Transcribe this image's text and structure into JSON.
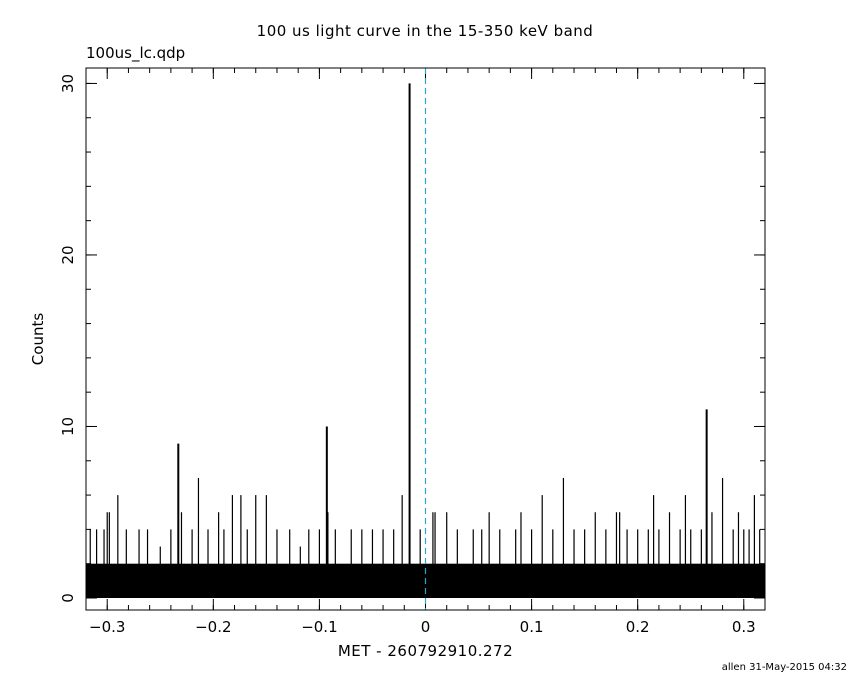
{
  "chart_data": {
    "type": "bar",
    "title": "100 us light curve in the 15-350 keV band",
    "file_label": "100us_lc.qdp",
    "footer": "allen 31-May-2015 04:32",
    "xlabel": "MET - 260792910.272",
    "ylabel": "Counts",
    "xlim": [
      -0.32,
      0.32
    ],
    "ylim": [
      -0.7,
      30.9
    ],
    "bin_width": 0.0001,
    "x_ticks": [
      -0.3,
      -0.2,
      -0.1,
      0,
      0.1,
      0.2,
      0.3
    ],
    "x_tick_labels": [
      "−0.3",
      "−0.2",
      "−0.1",
      "0",
      "0.1",
      "0.2",
      "0.3"
    ],
    "y_ticks": [
      0,
      10,
      20,
      30
    ],
    "y_tick_labels": [
      "0",
      "10",
      "20",
      "30"
    ],
    "reference_line": {
      "x": 0,
      "style": "dashed",
      "color": "#2aa7c9"
    },
    "baseline_counts": 2,
    "peaks": [
      {
        "x": -0.316,
        "y": 4
      },
      {
        "x": -0.31,
        "y": 4
      },
      {
        "x": -0.303,
        "y": 4
      },
      {
        "x": -0.3,
        "y": 5
      },
      {
        "x": -0.298,
        "y": 5
      },
      {
        "x": -0.29,
        "y": 6
      },
      {
        "x": -0.282,
        "y": 4
      },
      {
        "x": -0.27,
        "y": 4
      },
      {
        "x": -0.262,
        "y": 4
      },
      {
        "x": -0.25,
        "y": 3
      },
      {
        "x": -0.24,
        "y": 4
      },
      {
        "x": -0.233,
        "y": 9
      },
      {
        "x": -0.23,
        "y": 5
      },
      {
        "x": -0.22,
        "y": 4
      },
      {
        "x": -0.214,
        "y": 7
      },
      {
        "x": -0.205,
        "y": 4
      },
      {
        "x": -0.195,
        "y": 5
      },
      {
        "x": -0.19,
        "y": 4
      },
      {
        "x": -0.182,
        "y": 6
      },
      {
        "x": -0.174,
        "y": 6
      },
      {
        "x": -0.168,
        "y": 4
      },
      {
        "x": -0.16,
        "y": 6
      },
      {
        "x": -0.15,
        "y": 6
      },
      {
        "x": -0.14,
        "y": 4
      },
      {
        "x": -0.128,
        "y": 4
      },
      {
        "x": -0.118,
        "y": 3
      },
      {
        "x": -0.11,
        "y": 4
      },
      {
        "x": -0.1,
        "y": 4
      },
      {
        "x": -0.093,
        "y": 10
      },
      {
        "x": -0.092,
        "y": 5
      },
      {
        "x": -0.085,
        "y": 4
      },
      {
        "x": -0.07,
        "y": 4
      },
      {
        "x": -0.06,
        "y": 4
      },
      {
        "x": -0.05,
        "y": 4
      },
      {
        "x": -0.04,
        "y": 4
      },
      {
        "x": -0.03,
        "y": 4
      },
      {
        "x": -0.022,
        "y": 6
      },
      {
        "x": -0.015,
        "y": 30
      },
      {
        "x": -0.005,
        "y": 4
      },
      {
        "x": 0.007,
        "y": 5
      },
      {
        "x": 0.009,
        "y": 5
      },
      {
        "x": 0.02,
        "y": 5
      },
      {
        "x": 0.03,
        "y": 4
      },
      {
        "x": 0.045,
        "y": 4
      },
      {
        "x": 0.053,
        "y": 4
      },
      {
        "x": 0.06,
        "y": 5
      },
      {
        "x": 0.07,
        "y": 4
      },
      {
        "x": 0.085,
        "y": 4
      },
      {
        "x": 0.09,
        "y": 5
      },
      {
        "x": 0.1,
        "y": 4
      },
      {
        "x": 0.11,
        "y": 6
      },
      {
        "x": 0.12,
        "y": 4
      },
      {
        "x": 0.13,
        "y": 7
      },
      {
        "x": 0.14,
        "y": 4
      },
      {
        "x": 0.15,
        "y": 4
      },
      {
        "x": 0.16,
        "y": 5
      },
      {
        "x": 0.17,
        "y": 4
      },
      {
        "x": 0.18,
        "y": 5
      },
      {
        "x": 0.183,
        "y": 5
      },
      {
        "x": 0.19,
        "y": 4
      },
      {
        "x": 0.2,
        "y": 4
      },
      {
        "x": 0.21,
        "y": 4
      },
      {
        "x": 0.215,
        "y": 6
      },
      {
        "x": 0.22,
        "y": 4
      },
      {
        "x": 0.23,
        "y": 5
      },
      {
        "x": 0.24,
        "y": 4
      },
      {
        "x": 0.245,
        "y": 6
      },
      {
        "x": 0.25,
        "y": 4
      },
      {
        "x": 0.26,
        "y": 4
      },
      {
        "x": 0.265,
        "y": 11
      },
      {
        "x": 0.27,
        "y": 5
      },
      {
        "x": 0.28,
        "y": 7
      },
      {
        "x": 0.29,
        "y": 4
      },
      {
        "x": 0.295,
        "y": 5
      },
      {
        "x": 0.3,
        "y": 4
      },
      {
        "x": 0.305,
        "y": 4
      },
      {
        "x": 0.31,
        "y": 6
      },
      {
        "x": 0.315,
        "y": 4
      }
    ]
  }
}
